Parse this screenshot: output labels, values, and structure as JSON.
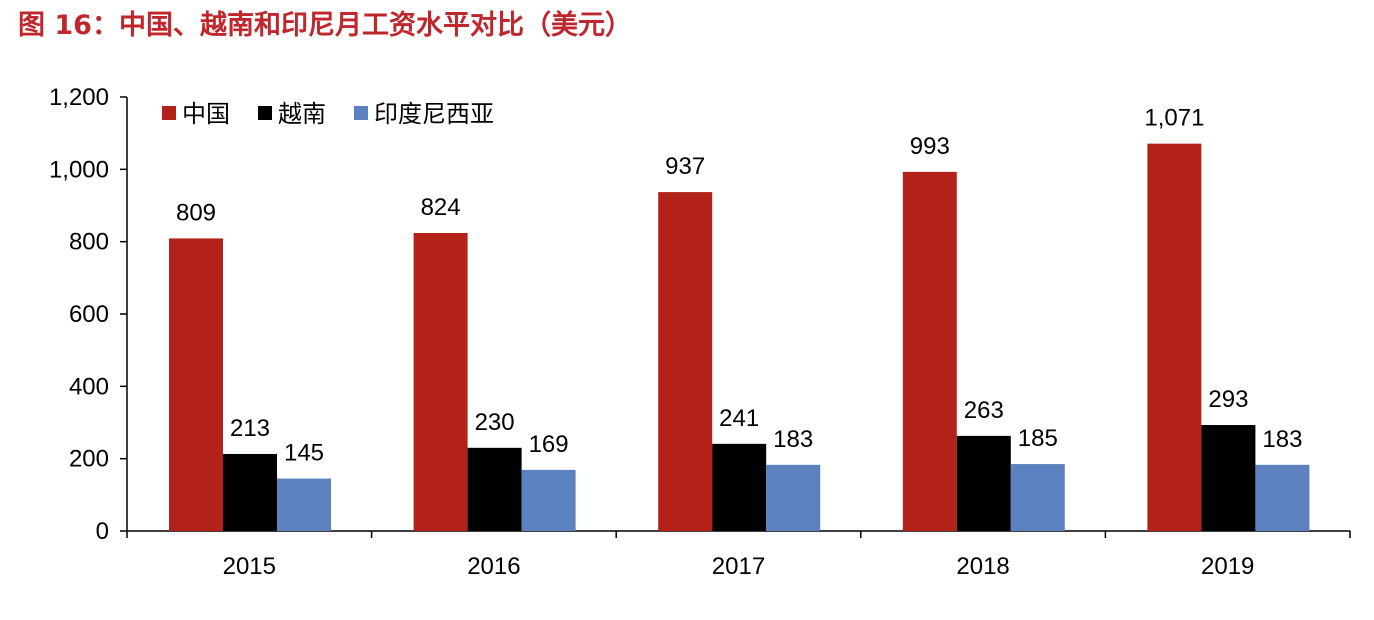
{
  "figure": {
    "title": "图 16：中国、越南和印尼月工资水平对比（美元）"
  },
  "chart_data": {
    "type": "bar",
    "title": "",
    "xlabel": "",
    "ylabel": "",
    "categories": [
      "2015",
      "2016",
      "2017",
      "2018",
      "2019"
    ],
    "series": [
      {
        "name": "中国",
        "values": [
          809,
          824,
          937,
          993,
          1071
        ],
        "labels": [
          "809",
          "824",
          "937",
          "993",
          "1,071"
        ],
        "color": "#b22218"
      },
      {
        "name": "越南",
        "values": [
          213,
          230,
          241,
          263,
          293
        ],
        "labels": [
          "213",
          "230",
          "241",
          "263",
          "293"
        ],
        "color": "#000000"
      },
      {
        "name": "印度尼西亚",
        "values": [
          145,
          169,
          183,
          185,
          183
        ],
        "labels": [
          "145",
          "169",
          "183",
          "185",
          "183"
        ],
        "color": "#5b82bf"
      }
    ],
    "ylim": [
      0,
      1200
    ],
    "yticks": [
      0,
      200,
      400,
      600,
      800,
      1000,
      1200
    ],
    "ytick_labels": [
      "0",
      "200",
      "400",
      "600",
      "800",
      "1,000",
      "1,200"
    ],
    "grid": false,
    "legend_position": "top-left"
  }
}
